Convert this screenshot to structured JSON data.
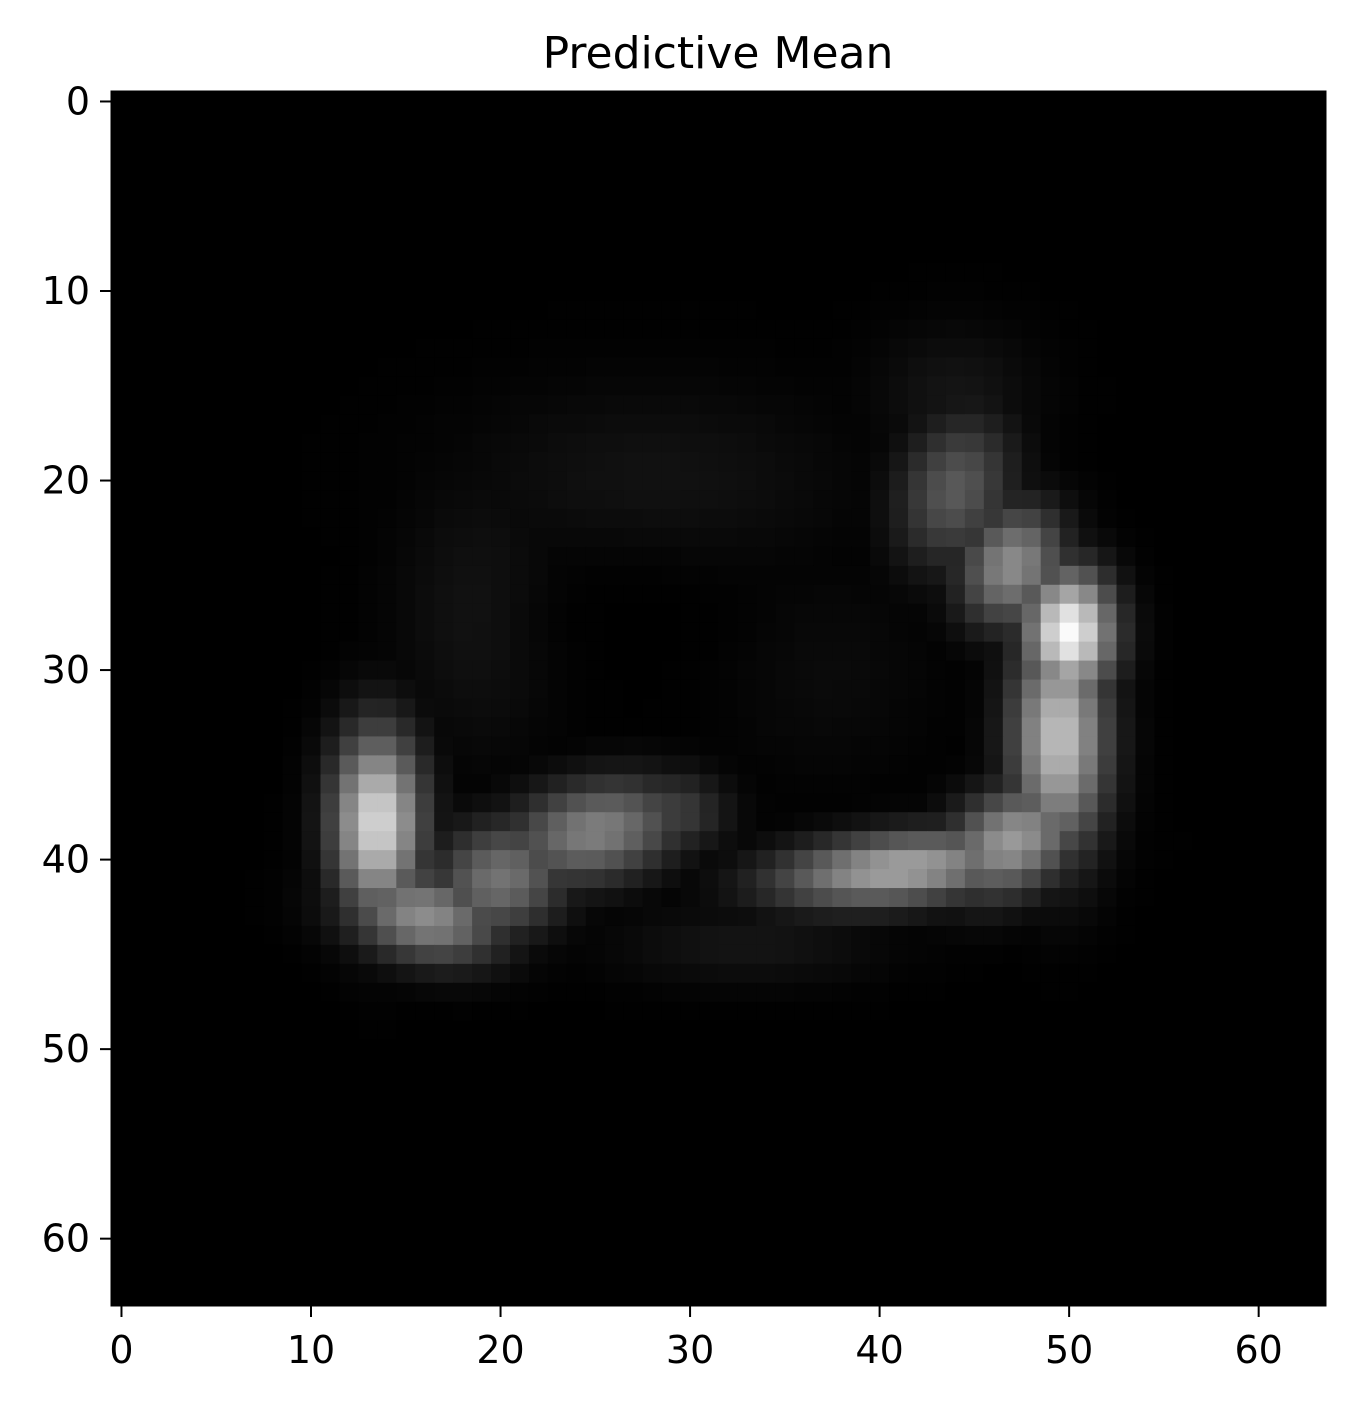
{
  "chart_data": {
    "type": "heatmap",
    "title": "Predictive Mean",
    "xlabel": "",
    "ylabel": "",
    "colormap": "gray",
    "x_ticks": [
      0,
      10,
      20,
      30,
      40,
      50,
      60
    ],
    "y_ticks": [
      0,
      10,
      20,
      30,
      40,
      50,
      60
    ],
    "x_tick_labels": [
      "0",
      "10",
      "20",
      "30",
      "40",
      "50",
      "60"
    ],
    "y_tick_labels": [
      "0",
      "10",
      "20",
      "30",
      "40",
      "50",
      "60"
    ],
    "xlim": [
      -0.5,
      63.5
    ],
    "ylim": [
      63.5,
      -0.5
    ],
    "grid": false,
    "image_shape": [
      64,
      64
    ],
    "background_value": 0.0,
    "intensity_blobs": [
      {
        "cx": 13.5,
        "cy": 38.0,
        "sx": 1.6,
        "sy": 3.2,
        "rot": 0.0,
        "amp": 0.85
      },
      {
        "cx": 16.0,
        "cy": 43.0,
        "sx": 2.8,
        "sy": 1.6,
        "rot": 0.2,
        "amp": 0.55
      },
      {
        "cx": 20.0,
        "cy": 41.0,
        "sx": 2.5,
        "sy": 2.0,
        "rot": -0.3,
        "amp": 0.45
      },
      {
        "cx": 25.0,
        "cy": 38.5,
        "sx": 3.2,
        "sy": 1.8,
        "rot": -0.2,
        "amp": 0.5
      },
      {
        "cx": 29.0,
        "cy": 37.5,
        "sx": 2.0,
        "sy": 1.5,
        "rot": 0.0,
        "amp": 0.25
      },
      {
        "cx": 41.0,
        "cy": 40.5,
        "sx": 4.5,
        "sy": 1.3,
        "rot": -0.1,
        "amp": 0.65
      },
      {
        "cx": 47.0,
        "cy": 39.0,
        "sx": 2.6,
        "sy": 1.8,
        "rot": -0.5,
        "amp": 0.6
      },
      {
        "cx": 49.5,
        "cy": 33.5,
        "sx": 1.7,
        "sy": 4.0,
        "rot": 0.0,
        "amp": 0.75
      },
      {
        "cx": 50.0,
        "cy": 28.0,
        "sx": 1.6,
        "sy": 2.2,
        "rot": 0.0,
        "amp": 0.98
      },
      {
        "cx": 47.0,
        "cy": 24.5,
        "sx": 1.8,
        "sy": 2.2,
        "rot": 0.4,
        "amp": 0.55
      },
      {
        "cx": 44.0,
        "cy": 20.5,
        "sx": 2.0,
        "sy": 2.8,
        "rot": 0.3,
        "amp": 0.35
      },
      {
        "cx": 44.0,
        "cy": 15.5,
        "sx": 3.0,
        "sy": 2.5,
        "rot": 0.0,
        "amp": 0.08
      },
      {
        "cx": 28.0,
        "cy": 20.0,
        "sx": 7.0,
        "sy": 3.5,
        "rot": 0.0,
        "amp": 0.07
      },
      {
        "cx": 19.0,
        "cy": 27.0,
        "sx": 3.0,
        "sy": 5.0,
        "rot": 0.0,
        "amp": 0.08
      },
      {
        "cx": 37.0,
        "cy": 30.0,
        "sx": 4.0,
        "sy": 4.0,
        "rot": 0.0,
        "amp": 0.04
      },
      {
        "cx": 33.0,
        "cy": 44.5,
        "sx": 5.0,
        "sy": 1.5,
        "rot": 0.0,
        "amp": 0.08
      }
    ],
    "dark_hole": {
      "cx": 27.0,
      "cy": 27.5,
      "sx": 4.5,
      "sy": 3.0,
      "strength": 0.9
    }
  }
}
